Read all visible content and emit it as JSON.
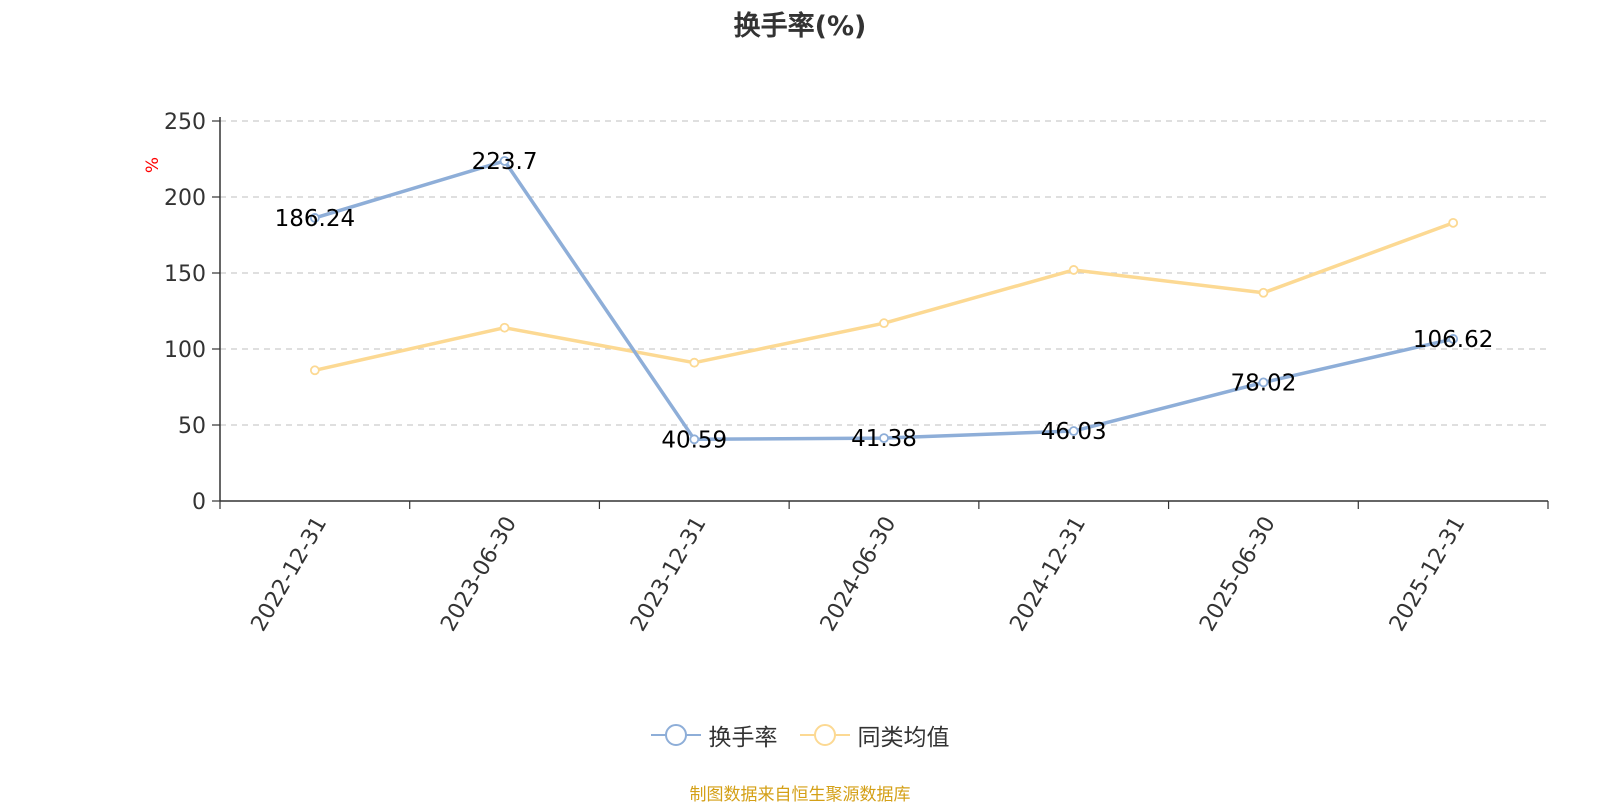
{
  "chart_data": {
    "type": "line",
    "title": "换手率(%)",
    "ylabel": "%",
    "categories": [
      "2022-12-31",
      "2023-06-30",
      "2023-12-31",
      "2024-06-30",
      "2024-12-31",
      "2025-06-30",
      "2025-12-31"
    ],
    "ylim": [
      0,
      250
    ],
    "yticks": [
      0,
      50,
      100,
      150,
      200,
      250
    ],
    "grid": true,
    "legend_position": "bottom",
    "series": [
      {
        "name": "换手率",
        "color": "#8eaed8",
        "values": [
          186.24,
          223.7,
          40.59,
          41.38,
          46.03,
          78.02,
          106.62
        ],
        "show_labels": true
      },
      {
        "name": "同类均值",
        "color": "#fcd993",
        "values": [
          86,
          114,
          91,
          117,
          152,
          137,
          183
        ],
        "show_labels": false
      }
    ]
  },
  "footer": {
    "source": "制图数据来自恒生聚源数据库"
  },
  "colors": {
    "axis": "#333333",
    "grid": "#cccccc",
    "ylabel": "#ff0000",
    "source": "#d4a017"
  }
}
